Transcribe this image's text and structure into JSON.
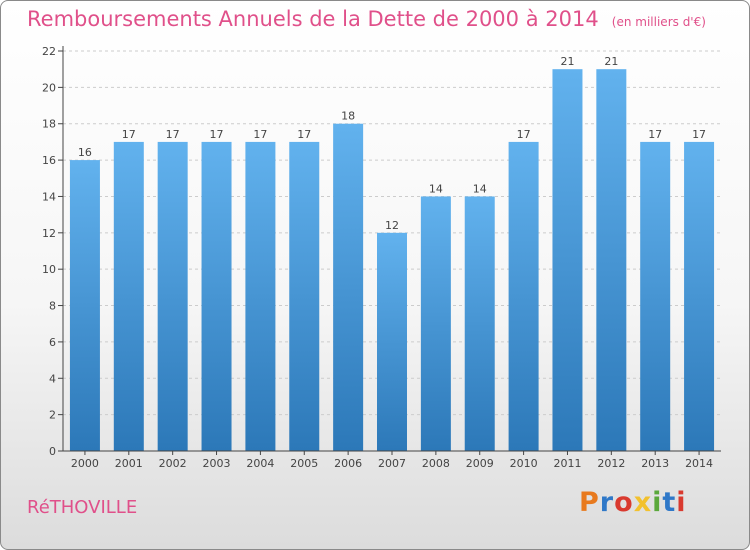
{
  "header": {
    "title": "Remboursements Annuels de la Dette de 2000 à 2014",
    "unit": "(en milliers d'€)"
  },
  "footer": {
    "place": "RéTHOVILLE",
    "brand": "Proxiti",
    "brand_colors": [
      "#e87a1e",
      "#2f78c8",
      "#d93a2f",
      "#f2c12e",
      "#5aa83b",
      "#2f78c8",
      "#d93a2f"
    ]
  },
  "colors": {
    "title": "#e0508a",
    "bar_light": "#62b2ee",
    "bar_dark": "#2c78b8",
    "axis": "#444444",
    "grid": "#cccccc",
    "label": "#444444"
  },
  "chart_data": {
    "type": "bar",
    "title": "Remboursements Annuels de la Dette de 2000 à 2014",
    "xlabel": "",
    "ylabel": "",
    "categories": [
      "2000",
      "2001",
      "2002",
      "2003",
      "2004",
      "2005",
      "2006",
      "2007",
      "2008",
      "2009",
      "2010",
      "2011",
      "2012",
      "2013",
      "2014"
    ],
    "values": [
      16,
      17,
      17,
      17,
      17,
      17,
      18,
      12,
      14,
      14,
      17,
      21,
      21,
      17,
      17
    ],
    "ylim": [
      0,
      22
    ],
    "yticks": [
      0,
      2,
      4,
      6,
      8,
      10,
      12,
      14,
      16,
      18,
      20,
      22
    ],
    "grid": true,
    "legend": "none"
  }
}
